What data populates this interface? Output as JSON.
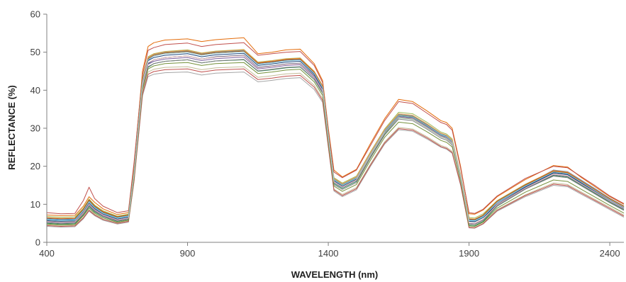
{
  "chart_data": {
    "type": "line",
    "title": "",
    "xlabel": "WAVELENGTH (nm)",
    "ylabel": "REFLECTANCE (%)",
    "xlim": [
      400,
      2450
    ],
    "ylim": [
      0,
      60
    ],
    "xticks": [
      "400",
      "900",
      "1400",
      "1900",
      "2400"
    ],
    "yticks": [
      "0",
      "10",
      "20",
      "30",
      "40",
      "50",
      "60"
    ],
    "grid": false,
    "legend": "none",
    "x": [
      400,
      450,
      500,
      530,
      550,
      570,
      600,
      650,
      690,
      710,
      740,
      760,
      780,
      820,
      900,
      950,
      1000,
      1100,
      1150,
      1200,
      1250,
      1300,
      1350,
      1380,
      1400,
      1420,
      1450,
      1500,
      1550,
      1600,
      1650,
      1700,
      1750,
      1800,
      1820,
      1840,
      1870,
      1900,
      1920,
      1950,
      2000,
      2100,
      2200,
      2250,
      2300,
      2350,
      2400,
      2450
    ],
    "series": [
      {
        "color": "#E46C0A",
        "values": [
          7.2,
          7.0,
          7.1,
          9.5,
          12.0,
          10.5,
          8.8,
          7.3,
          7.8,
          20.0,
          45.0,
          51.5,
          52.5,
          53.2,
          53.5,
          52.8,
          53.3,
          53.8,
          49.6,
          50.0,
          50.6,
          50.8,
          47.0,
          42.5,
          30.0,
          19.0,
          17.2,
          19.2,
          26.0,
          32.5,
          37.6,
          37.0,
          34.6,
          32.0,
          31.5,
          30.0,
          20.0,
          7.5,
          7.4,
          8.5,
          12.0,
          16.5,
          20.2,
          19.8,
          17.0,
          14.5,
          12.0,
          10.0
        ]
      },
      {
        "color": "#C0504D",
        "values": [
          7.8,
          7.5,
          7.6,
          11.0,
          14.5,
          11.5,
          9.5,
          7.8,
          8.3,
          21.0,
          44.0,
          50.5,
          51.2,
          52.0,
          52.4,
          51.5,
          52.0,
          52.5,
          49.2,
          49.6,
          50.0,
          50.2,
          46.5,
          42.0,
          29.5,
          18.5,
          17.0,
          19.0,
          25.5,
          32.0,
          37.0,
          36.5,
          34.0,
          31.5,
          31.0,
          29.5,
          19.5,
          7.8,
          7.6,
          8.7,
          12.2,
          16.8,
          20.0,
          19.6,
          17.2,
          14.8,
          12.2,
          10.2
        ]
      },
      {
        "color": "#1F3C6E",
        "values": [
          5.6,
          5.4,
          5.5,
          8.0,
          10.2,
          8.8,
          7.4,
          6.1,
          6.6,
          18.0,
          41.5,
          47.0,
          48.0,
          48.6,
          49.0,
          48.2,
          48.8,
          49.2,
          46.0,
          46.4,
          46.9,
          47.1,
          43.8,
          40.0,
          27.5,
          16.5,
          15.2,
          17.0,
          23.5,
          29.5,
          33.6,
          33.2,
          31.0,
          28.5,
          28.0,
          26.8,
          17.5,
          5.5,
          5.4,
          6.5,
          10.0,
          14.5,
          18.2,
          17.8,
          15.5,
          13.2,
          11.0,
          9.0
        ]
      },
      {
        "color": "#4F81BD",
        "values": [
          6.2,
          6.0,
          6.1,
          8.6,
          11.0,
          9.4,
          7.9,
          6.6,
          7.1,
          18.5,
          42.0,
          48.0,
          49.0,
          49.8,
          50.3,
          49.5,
          50.0,
          50.4,
          47.0,
          47.4,
          47.9,
          48.1,
          44.6,
          40.8,
          28.0,
          16.2,
          14.8,
          16.6,
          23.0,
          29.0,
          33.0,
          32.6,
          30.5,
          28.0,
          27.5,
          26.2,
          17.0,
          6.0,
          5.9,
          7.0,
          10.8,
          15.0,
          19.0,
          18.6,
          16.3,
          14.0,
          11.6,
          9.6
        ]
      },
      {
        "color": "#2E8B57",
        "values": [
          5.0,
          4.8,
          4.9,
          7.2,
          9.4,
          8.0,
          6.7,
          5.5,
          6.0,
          17.5,
          40.0,
          46.0,
          47.0,
          47.6,
          48.0,
          47.2,
          47.7,
          48.0,
          45.0,
          45.4,
          45.9,
          46.1,
          42.8,
          39.2,
          27.0,
          15.5,
          14.2,
          16.0,
          22.5,
          28.5,
          32.8,
          32.4,
          30.2,
          27.8,
          27.3,
          26.0,
          16.8,
          4.5,
          4.4,
          5.5,
          9.5,
          14.0,
          17.6,
          17.2,
          15.0,
          12.8,
          10.6,
          8.6
        ]
      },
      {
        "color": "#9BBB59",
        "values": [
          6.8,
          6.6,
          6.7,
          9.0,
          11.4,
          9.8,
          8.3,
          6.9,
          7.4,
          19.0,
          43.0,
          48.8,
          49.6,
          50.2,
          50.6,
          49.8,
          50.3,
          50.7,
          47.4,
          47.8,
          48.3,
          48.5,
          45.0,
          41.2,
          28.5,
          17.0,
          15.6,
          17.4,
          23.8,
          29.8,
          34.2,
          33.8,
          31.6,
          29.0,
          28.5,
          27.2,
          17.8,
          6.5,
          6.4,
          7.5,
          11.0,
          15.3,
          18.8,
          18.4,
          16.0,
          13.7,
          11.3,
          9.3
        ]
      },
      {
        "color": "#8064A2",
        "values": [
          5.4,
          5.2,
          5.3,
          7.6,
          9.8,
          8.4,
          7.0,
          5.8,
          6.3,
          17.8,
          41.0,
          46.8,
          47.6,
          48.2,
          48.6,
          47.8,
          48.3,
          48.7,
          45.6,
          46.0,
          46.5,
          46.7,
          43.3,
          39.6,
          27.2,
          15.8,
          14.5,
          16.3,
          22.8,
          28.8,
          33.0,
          32.6,
          30.4,
          28.0,
          27.5,
          26.2,
          17.0,
          5.0,
          4.9,
          6.0,
          9.8,
          14.2,
          17.8,
          17.4,
          15.2,
          13.0,
          10.8,
          8.8
        ]
      },
      {
        "color": "#4BACC6",
        "values": [
          6.0,
          5.8,
          5.9,
          8.4,
          10.8,
          9.2,
          7.7,
          6.4,
          6.9,
          18.4,
          42.5,
          48.5,
          49.4,
          50.0,
          50.4,
          49.6,
          50.1,
          50.5,
          47.2,
          47.6,
          48.1,
          48.3,
          44.8,
          41.0,
          28.2,
          16.6,
          15.2,
          17.0,
          23.4,
          29.4,
          33.6,
          33.2,
          31.0,
          28.5,
          28.0,
          26.7,
          17.4,
          5.8,
          5.7,
          6.8,
          10.6,
          14.9,
          18.6,
          18.2,
          15.9,
          13.6,
          11.3,
          9.3
        ]
      },
      {
        "color": "#F79646",
        "values": [
          6.5,
          6.3,
          6.4,
          8.8,
          11.2,
          9.6,
          8.1,
          6.7,
          7.2,
          18.8,
          42.8,
          48.6,
          49.5,
          50.1,
          50.5,
          49.7,
          50.2,
          50.6,
          47.3,
          47.7,
          48.2,
          48.4,
          44.9,
          41.1,
          28.3,
          16.8,
          15.4,
          17.2,
          23.6,
          29.6,
          33.8,
          33.4,
          31.2,
          28.7,
          28.2,
          26.9,
          17.6,
          6.2,
          6.1,
          7.2,
          10.9,
          15.2,
          18.9,
          18.5,
          16.1,
          13.8,
          11.5,
          9.5
        ]
      },
      {
        "color": "#7F7F7F",
        "values": [
          5.2,
          5.0,
          5.1,
          7.4,
          9.6,
          8.2,
          6.8,
          5.6,
          6.1,
          17.2,
          40.5,
          46.2,
          47.0,
          47.6,
          48.0,
          47.2,
          47.7,
          48.1,
          45.1,
          45.5,
          46.0,
          46.2,
          42.9,
          39.3,
          26.9,
          15.2,
          13.9,
          15.7,
          22.2,
          28.2,
          32.4,
          32.0,
          29.8,
          27.4,
          26.9,
          25.6,
          16.6,
          4.8,
          4.7,
          5.8,
          9.6,
          14.0,
          17.4,
          17.0,
          14.8,
          12.6,
          10.4,
          8.4
        ]
      },
      {
        "color": "#A5A5A5",
        "values": [
          4.2,
          4.0,
          4.1,
          6.2,
          8.2,
          7.0,
          5.8,
          4.8,
          5.3,
          16.0,
          38.5,
          43.6,
          44.2,
          44.6,
          44.8,
          44.0,
          44.5,
          44.8,
          42.2,
          42.6,
          43.1,
          43.3,
          40.2,
          36.8,
          25.0,
          13.5,
          12.0,
          13.8,
          20.0,
          25.8,
          29.6,
          29.2,
          27.2,
          25.0,
          24.5,
          23.4,
          15.0,
          3.8,
          3.7,
          4.8,
          8.2,
          12.0,
          15.0,
          14.6,
          12.6,
          10.6,
          8.6,
          6.6
        ]
      },
      {
        "color": "#C4BD97",
        "values": [
          4.6,
          4.4,
          4.5,
          6.6,
          8.6,
          7.4,
          6.1,
          5.1,
          5.6,
          16.5,
          39.5,
          44.8,
          45.5,
          46.0,
          46.2,
          45.4,
          45.9,
          46.2,
          43.4,
          43.8,
          44.3,
          44.5,
          41.3,
          37.8,
          25.6,
          14.0,
          12.6,
          14.4,
          20.6,
          26.4,
          30.2,
          29.8,
          27.8,
          25.5,
          25.0,
          23.9,
          15.4,
          4.0,
          3.9,
          5.0,
          8.6,
          12.5,
          15.6,
          15.2,
          13.2,
          11.2,
          9.2,
          7.2
        ]
      },
      {
        "color": "#C0504D",
        "values": [
          4.4,
          4.2,
          4.3,
          6.4,
          8.4,
          7.2,
          6.0,
          5.0,
          5.5,
          16.2,
          39.0,
          44.2,
          44.9,
          45.4,
          45.6,
          44.8,
          45.3,
          45.6,
          42.8,
          43.2,
          43.7,
          43.9,
          40.8,
          37.3,
          25.3,
          13.8,
          12.3,
          14.1,
          20.3,
          26.1,
          29.9,
          29.5,
          27.5,
          25.2,
          24.7,
          23.6,
          15.2,
          3.9,
          3.8,
          4.9,
          8.4,
          12.3,
          15.3,
          14.9,
          12.9,
          10.9,
          8.9,
          6.9
        ]
      },
      {
        "color": "#1F497D",
        "values": [
          5.8,
          5.6,
          5.7,
          8.2,
          10.6,
          9.0,
          7.5,
          6.2,
          6.7,
          18.2,
          42.0,
          47.8,
          48.6,
          49.2,
          49.6,
          48.8,
          49.3,
          49.7,
          46.5,
          46.9,
          47.4,
          47.6,
          44.2,
          40.4,
          27.8,
          16.2,
          14.8,
          16.6,
          23.0,
          29.0,
          33.2,
          32.8,
          30.6,
          28.2,
          27.7,
          26.4,
          17.2,
          5.6,
          5.5,
          6.6,
          10.4,
          14.7,
          18.4,
          18.0,
          15.7,
          13.4,
          11.1,
          9.1
        ]
      },
      {
        "color": "#76923C",
        "values": [
          4.8,
          4.6,
          4.7,
          7.0,
          9.0,
          7.7,
          6.4,
          5.3,
          5.8,
          17.0,
          40.2,
          45.6,
          46.4,
          47.0,
          47.3,
          46.5,
          47.0,
          47.3,
          44.4,
          44.8,
          45.3,
          45.5,
          42.2,
          38.6,
          26.3,
          14.8,
          13.4,
          15.2,
          21.6,
          27.6,
          31.6,
          31.2,
          29.1,
          26.8,
          26.3,
          25.1,
          16.2,
          4.3,
          4.2,
          5.3,
          9.0,
          13.2,
          16.4,
          16.0,
          13.9,
          11.8,
          9.7,
          7.7
        ]
      },
      {
        "color": "#B65708",
        "values": [
          6.4,
          6.2,
          6.3,
          8.7,
          11.1,
          9.5,
          8.0,
          6.7,
          7.2,
          18.6,
          42.6,
          48.3,
          49.2,
          49.8,
          50.2,
          49.4,
          49.9,
          50.3,
          47.1,
          47.5,
          48.0,
          48.2,
          44.7,
          40.9,
          28.1,
          16.4,
          15.0,
          16.8,
          23.2,
          29.2,
          33.4,
          33.0,
          30.8,
          28.3,
          27.8,
          26.5,
          17.3,
          6.1,
          6.0,
          7.1,
          10.8,
          15.1,
          18.7,
          18.3,
          16.0,
          13.7,
          11.4,
          9.4
        ]
      },
      {
        "color": "#E6B9B8",
        "values": [
          5.5,
          5.3,
          5.4,
          7.8,
          10.0,
          8.6,
          7.2,
          5.9,
          6.4,
          17.9,
          41.3,
          47.2,
          48.0,
          48.6,
          49.0,
          48.2,
          48.7,
          49.1,
          45.9,
          46.3,
          46.8,
          47.0,
          43.6,
          39.9,
          27.4,
          15.9,
          14.6,
          16.4,
          22.8,
          28.8,
          32.9,
          32.5,
          30.3,
          27.9,
          27.4,
          26.1,
          17.0,
          5.1,
          5.0,
          6.1,
          9.9,
          14.3,
          17.9,
          17.5,
          15.3,
          13.1,
          10.9,
          8.9
        ]
      },
      {
        "color": "#93CDDD",
        "values": [
          5.9,
          5.7,
          5.8,
          8.3,
          10.7,
          9.1,
          7.6,
          6.3,
          6.8,
          18.3,
          42.2,
          48.1,
          49.0,
          49.6,
          50.0,
          49.2,
          49.7,
          50.1,
          46.8,
          47.2,
          47.7,
          47.9,
          44.5,
          40.7,
          28.0,
          16.4,
          15.0,
          16.8,
          23.2,
          29.2,
          33.3,
          32.9,
          30.7,
          28.3,
          27.8,
          26.5,
          17.3,
          5.7,
          5.6,
          6.7,
          10.5,
          14.8,
          18.5,
          18.1,
          15.8,
          13.5,
          11.2,
          9.2
        ]
      }
    ]
  }
}
